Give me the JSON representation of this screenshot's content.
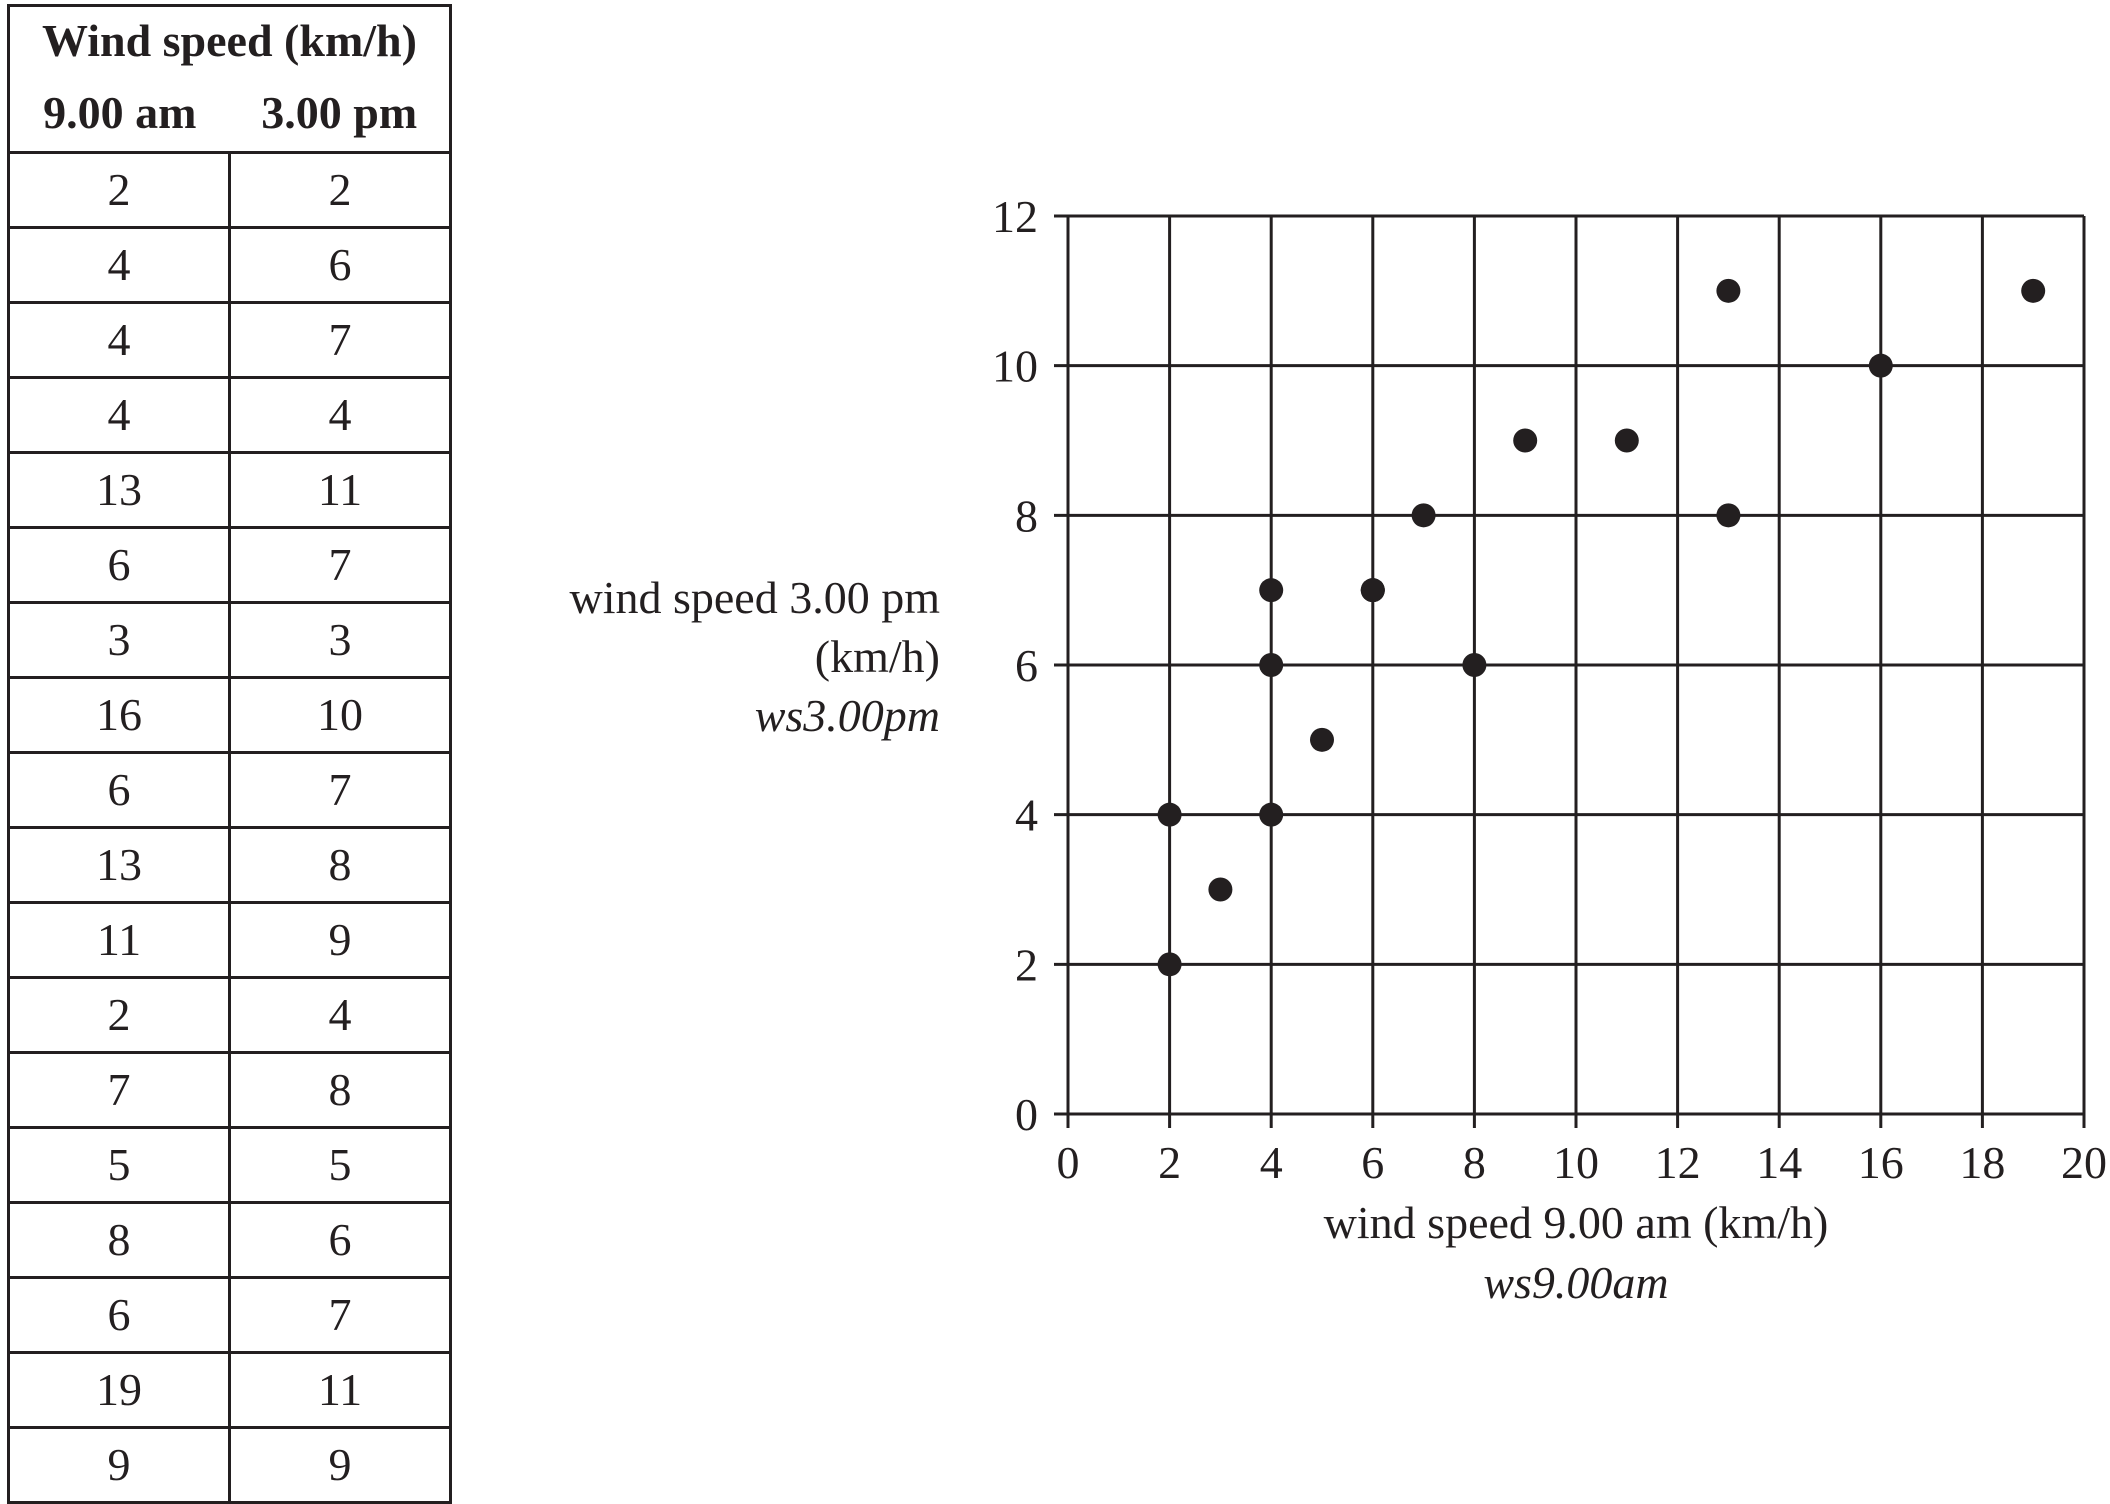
{
  "table": {
    "title": "Wind speed (km/h)",
    "columns": [
      "9.00 am",
      "3.00 pm"
    ],
    "rows": [
      [
        2,
        2
      ],
      [
        4,
        6
      ],
      [
        4,
        7
      ],
      [
        4,
        4
      ],
      [
        13,
        11
      ],
      [
        6,
        7
      ],
      [
        3,
        3
      ],
      [
        16,
        10
      ],
      [
        6,
        7
      ],
      [
        13,
        8
      ],
      [
        11,
        9
      ],
      [
        2,
        4
      ],
      [
        7,
        8
      ],
      [
        5,
        5
      ],
      [
        8,
        6
      ],
      [
        6,
        7
      ],
      [
        19,
        11
      ],
      [
        9,
        9
      ]
    ]
  },
  "chart_data": {
    "type": "scatter",
    "xlabel": "wind speed 9.00 am (km/h)",
    "xvar": "ws9.00am",
    "ylabel_lines": [
      "wind speed 3.00 pm",
      "(km/h)"
    ],
    "yvar": "ws3.00pm",
    "xlim": [
      0,
      20
    ],
    "ylim": [
      0,
      12
    ],
    "xticks": [
      0,
      2,
      4,
      6,
      8,
      10,
      12,
      14,
      16,
      18,
      20
    ],
    "yticks": [
      0,
      2,
      4,
      6,
      8,
      10,
      12
    ],
    "grid": true,
    "points": [
      [
        2,
        2
      ],
      [
        4,
        6
      ],
      [
        4,
        7
      ],
      [
        4,
        4
      ],
      [
        13,
        11
      ],
      [
        6,
        7
      ],
      [
        3,
        3
      ],
      [
        16,
        10
      ],
      [
        6,
        7
      ],
      [
        13,
        8
      ],
      [
        11,
        9
      ],
      [
        2,
        4
      ],
      [
        7,
        8
      ],
      [
        5,
        5
      ],
      [
        8,
        6
      ],
      [
        6,
        7
      ],
      [
        19,
        11
      ],
      [
        9,
        9
      ]
    ],
    "colors": {
      "ink": "#231f20"
    }
  }
}
